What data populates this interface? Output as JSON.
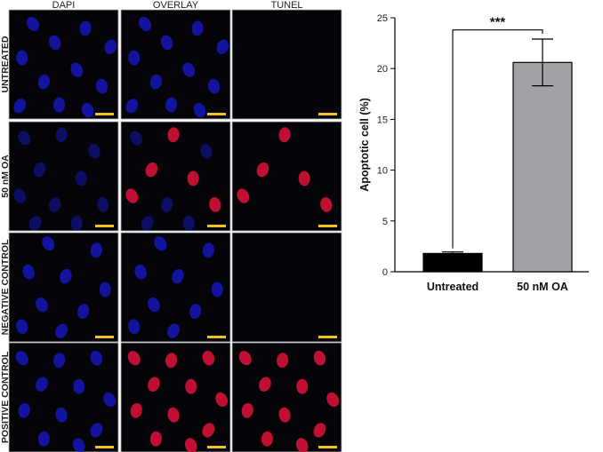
{
  "figure": {
    "columns": [
      "DAPI",
      "OVERLAY",
      "TUNEL"
    ],
    "rows": [
      "UNTREATED",
      "50 nM OA",
      "NEGATIVE CONTROL",
      "POSITIVE CONTROL"
    ]
  },
  "colors": {
    "dapi_blue": "#1a1ad0",
    "tunel_red": "#e0123a",
    "scale_bar": "#f2c31e",
    "bar_untreated": "#000000",
    "bar_oa": "#a3a3a7"
  },
  "chart_data": {
    "type": "bar",
    "categories": [
      "Untreated",
      "50 nM OA"
    ],
    "values": [
      1.8,
      20.6
    ],
    "errors": [
      0.15,
      2.3
    ],
    "ylabel": "Apoptotic cell (%)",
    "ylim": [
      0,
      25
    ],
    "yticks": [
      0,
      5,
      10,
      15,
      20,
      25
    ],
    "significance": "***",
    "grid": false
  }
}
